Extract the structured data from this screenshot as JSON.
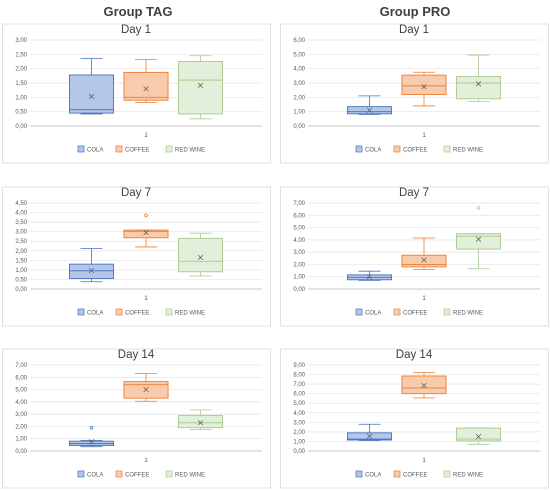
{
  "groups": [
    "Group TAG",
    "Group PRO"
  ],
  "colors": {
    "COLA": {
      "fill": "#b4c7e7",
      "stroke": "#4472c4"
    },
    "COFFEE": {
      "fill": "#f8cbad",
      "stroke": "#ed7d31"
    },
    "RED WINE": {
      "fill": "#e2efda",
      "stroke": "#a9c98f"
    }
  },
  "chart_data": [
    {
      "type": "box",
      "group": "Group TAG",
      "title": "Day 1",
      "categories": [
        "1"
      ],
      "ylim": [
        0,
        3
      ],
      "yticks": [
        "0,00",
        "0,50",
        "1,00",
        "1,50",
        "2,00",
        "2,50",
        "3,00"
      ],
      "legend": "bottom",
      "series": [
        {
          "name": "COLA",
          "min": 0.42,
          "q1": 0.45,
          "median": 0.57,
          "q3": 1.78,
          "max": 2.35,
          "mean": 1.03,
          "outliers": []
        },
        {
          "name": "COFFEE",
          "min": 0.82,
          "q1": 0.9,
          "median": 1.0,
          "q3": 1.87,
          "max": 2.32,
          "mean": 1.3,
          "outliers": []
        },
        {
          "name": "RED WINE",
          "min": 0.25,
          "q1": 0.42,
          "median": 1.6,
          "q3": 2.25,
          "max": 2.45,
          "mean": 1.42,
          "outliers": []
        }
      ]
    },
    {
      "type": "box",
      "group": "Group PRO",
      "title": "Day 1",
      "categories": [
        "1"
      ],
      "ylim": [
        0,
        6
      ],
      "yticks": [
        "0,00",
        "1,00",
        "2,00",
        "3,00",
        "4,00",
        "5,00",
        "6,00"
      ],
      "legend": "bottom",
      "series": [
        {
          "name": "COLA",
          "min": 0.8,
          "q1": 0.85,
          "median": 1.0,
          "q3": 1.35,
          "max": 2.1,
          "mean": 1.1,
          "outliers": []
        },
        {
          "name": "COFFEE",
          "min": 1.4,
          "q1": 2.2,
          "median": 2.8,
          "q3": 3.55,
          "max": 3.75,
          "mean": 2.75,
          "outliers": []
        },
        {
          "name": "RED WINE",
          "min": 1.7,
          "q1": 1.9,
          "median": 3.0,
          "q3": 3.45,
          "max": 4.95,
          "mean": 2.95,
          "outliers": []
        }
      ]
    },
    {
      "type": "box",
      "group": "Group TAG",
      "title": "Day 7",
      "categories": [
        "1"
      ],
      "ylim": [
        0,
        4.5
      ],
      "yticks": [
        "0,00",
        "0,50",
        "1,00",
        "1,50",
        "2,00",
        "2,50",
        "3,00",
        "3,50",
        "4,00",
        "4,50"
      ],
      "legend": "bottom",
      "series": [
        {
          "name": "COLA",
          "min": 0.38,
          "q1": 0.55,
          "median": 0.95,
          "q3": 1.3,
          "max": 2.12,
          "mean": 0.97,
          "outliers": []
        },
        {
          "name": "COFFEE",
          "min": 2.2,
          "q1": 2.68,
          "median": 3.02,
          "q3": 3.08,
          "max": 3.08,
          "mean": 2.95,
          "outliers": [
            3.85
          ]
        },
        {
          "name": "RED WINE",
          "min": 0.68,
          "q1": 0.9,
          "median": 1.45,
          "q3": 2.65,
          "max": 2.92,
          "mean": 1.65,
          "outliers": []
        }
      ]
    },
    {
      "type": "box",
      "group": "Group PRO",
      "title": "Day 7",
      "categories": [
        "1"
      ],
      "ylim": [
        0,
        7
      ],
      "yticks": [
        "0,00",
        "1,00",
        "2,00",
        "3,00",
        "4,00",
        "5,00",
        "6,00",
        "7,00"
      ],
      "legend": "bottom",
      "series": [
        {
          "name": "COLA",
          "min": 0.7,
          "q1": 0.75,
          "median": 0.95,
          "q3": 1.15,
          "max": 1.45,
          "mean": 1.0,
          "outliers": []
        },
        {
          "name": "COFFEE",
          "min": 1.6,
          "q1": 1.8,
          "median": 2.0,
          "q3": 2.75,
          "max": 4.15,
          "mean": 2.35,
          "outliers": []
        },
        {
          "name": "RED WINE",
          "min": 1.65,
          "q1": 3.25,
          "median": 4.3,
          "q3": 4.5,
          "max": 4.5,
          "mean": 4.05,
          "outliers": [
            6.6
          ]
        }
      ]
    },
    {
      "type": "box",
      "group": "Group TAG",
      "title": "Day 14",
      "categories": [
        "1"
      ],
      "ylim": [
        0,
        7
      ],
      "yticks": [
        "0,00",
        "1,00",
        "2,00",
        "3,00",
        "4,00",
        "5,00",
        "6,00",
        "7,00"
      ],
      "legend": "bottom",
      "series": [
        {
          "name": "COLA",
          "min": 0.35,
          "q1": 0.45,
          "median": 0.6,
          "q3": 0.8,
          "max": 0.85,
          "mean": 0.75,
          "outliers": [
            1.9
          ]
        },
        {
          "name": "COFFEE",
          "min": 4.05,
          "q1": 4.3,
          "median": 5.4,
          "q3": 5.65,
          "max": 6.3,
          "mean": 5.0,
          "outliers": []
        },
        {
          "name": "RED WINE",
          "min": 1.75,
          "q1": 1.9,
          "median": 2.3,
          "q3": 2.9,
          "max": 3.35,
          "mean": 2.3,
          "outliers": []
        }
      ]
    },
    {
      "type": "box",
      "group": "Group PRO",
      "title": "Day 14",
      "categories": [
        "1"
      ],
      "ylim": [
        0,
        9
      ],
      "yticks": [
        "0,00",
        "1,00",
        "2,00",
        "3,00",
        "4,00",
        "5,00",
        "6,00",
        "7,00",
        "8,00",
        "9,00"
      ],
      "legend": "bottom",
      "series": [
        {
          "name": "COLA",
          "min": 1.1,
          "q1": 1.15,
          "median": 1.25,
          "q3": 1.9,
          "max": 2.8,
          "mean": 1.55,
          "outliers": []
        },
        {
          "name": "COFFEE",
          "min": 5.55,
          "q1": 6.0,
          "median": 6.6,
          "q3": 7.85,
          "max": 8.2,
          "mean": 6.85,
          "outliers": []
        },
        {
          "name": "RED WINE",
          "min": 0.7,
          "q1": 1.05,
          "median": 1.25,
          "q3": 2.4,
          "max": 2.4,
          "mean": 1.5,
          "outliers": []
        }
      ]
    }
  ]
}
